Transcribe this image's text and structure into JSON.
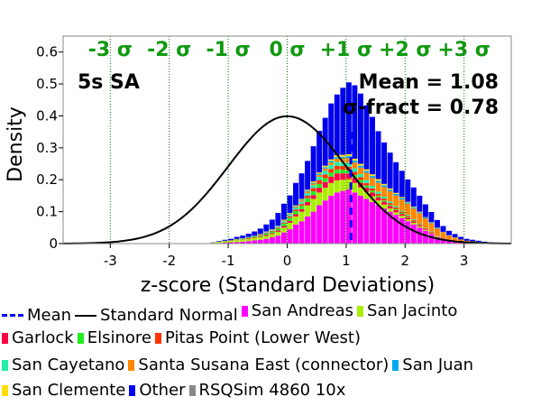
{
  "chart_data": {
    "type": "bar",
    "title": "",
    "panel_label": "5s SA",
    "stats": [
      "Mean = 1.08",
      "σ-fract = 0.78"
    ],
    "xlabel": "z-score (Standard Deviations)",
    "ylabel": "Density",
    "xlim": [
      -3.8,
      3.8
    ],
    "ylim": [
      0,
      0.65
    ],
    "x_ticks": [
      -3,
      -2,
      -1,
      0,
      1,
      2,
      3
    ],
    "x_tick_labels": [
      "-3",
      "-2",
      "-1",
      "0",
      "1",
      "2",
      "3"
    ],
    "y_ticks": [
      0,
      0.1,
      0.2,
      0.3,
      0.4,
      0.5,
      0.6
    ],
    "y_tick_labels": [
      "0",
      "0.1",
      "0.2",
      "0.3",
      "0.4",
      "0.5",
      "0.6"
    ],
    "sigma_lines": [
      -3,
      -2,
      -1,
      0,
      1,
      2,
      3
    ],
    "sigma_labels": [
      "-3 σ",
      "-2 σ",
      "-1 σ",
      "0 σ",
      "+1 σ",
      "+2 σ",
      "+3 σ"
    ],
    "mean": 1.08,
    "bin_width": 0.1,
    "bin_starts": [
      -1.3,
      -1.2,
      -1.1,
      -1.0,
      -0.9,
      -0.8,
      -0.7,
      -0.6,
      -0.5,
      -0.4,
      -0.3,
      -0.2,
      -0.1,
      0.0,
      0.1,
      0.2,
      0.3,
      0.4,
      0.5,
      0.6,
      0.7,
      0.8,
      0.9,
      1.0,
      1.1,
      1.2,
      1.3,
      1.4,
      1.5,
      1.6,
      1.7,
      1.8,
      1.9,
      2.0,
      2.1,
      2.2,
      2.3,
      2.4,
      2.5,
      2.6,
      2.7,
      2.8,
      2.9,
      3.0,
      3.1,
      3.2,
      3.3,
      3.4,
      3.5
    ],
    "series": [
      {
        "name": "San Andreas",
        "color": "#ff00ff",
        "values": [
          0.001,
          0.002,
          0.003,
          0.004,
          0.005,
          0.006,
          0.008,
          0.01,
          0.012,
          0.015,
          0.02,
          0.025,
          0.035,
          0.045,
          0.06,
          0.07,
          0.085,
          0.1,
          0.12,
          0.135,
          0.15,
          0.16,
          0.165,
          0.17,
          0.16,
          0.15,
          0.14,
          0.13,
          0.12,
          0.11,
          0.1,
          0.09,
          0.08,
          0.07,
          0.06,
          0.05,
          0.04,
          0.03,
          0.02,
          0.015,
          0.01,
          0.008,
          0.006,
          0.004,
          0.003,
          0.002,
          0.001,
          0.001,
          0.0
        ]
      },
      {
        "name": "San Jacinto",
        "color": "#aaee00",
        "values": [
          0.002,
          0.003,
          0.004,
          0.005,
          0.006,
          0.006,
          0.007,
          0.008,
          0.008,
          0.009,
          0.01,
          0.012,
          0.015,
          0.02,
          0.025,
          0.03,
          0.035,
          0.04,
          0.04,
          0.04,
          0.04,
          0.038,
          0.035,
          0.032,
          0.03,
          0.026,
          0.022,
          0.018,
          0.015,
          0.012,
          0.01,
          0.008,
          0.007,
          0.006,
          0.005,
          0.004,
          0.003,
          0.002,
          0.002,
          0.001,
          0.001,
          0.001,
          0.0,
          0.0,
          0.0,
          0.0,
          0.0,
          0.0,
          0.0
        ]
      },
      {
        "name": "Garlock",
        "color": "#ff0044",
        "values": [
          0.0,
          0.0,
          0.001,
          0.001,
          0.001,
          0.001,
          0.002,
          0.002,
          0.002,
          0.003,
          0.003,
          0.004,
          0.005,
          0.006,
          0.007,
          0.008,
          0.01,
          0.012,
          0.015,
          0.018,
          0.02,
          0.022,
          0.02,
          0.018,
          0.016,
          0.015,
          0.013,
          0.012,
          0.01,
          0.009,
          0.008,
          0.007,
          0.006,
          0.005,
          0.004,
          0.003,
          0.002,
          0.002,
          0.001,
          0.001,
          0.001,
          0.0,
          0.0,
          0.0,
          0.0,
          0.0,
          0.0,
          0.0,
          0.0
        ]
      },
      {
        "name": "Elsinore",
        "color": "#22ee22",
        "values": [
          0.0,
          0.001,
          0.001,
          0.001,
          0.002,
          0.002,
          0.002,
          0.003,
          0.003,
          0.004,
          0.005,
          0.006,
          0.008,
          0.01,
          0.01,
          0.01,
          0.012,
          0.012,
          0.012,
          0.012,
          0.012,
          0.012,
          0.011,
          0.01,
          0.009,
          0.008,
          0.007,
          0.006,
          0.005,
          0.004,
          0.004,
          0.003,
          0.003,
          0.002,
          0.002,
          0.001,
          0.001,
          0.001,
          0.0,
          0.0,
          0.0,
          0.0,
          0.0,
          0.0,
          0.0,
          0.0,
          0.0,
          0.0,
          0.0
        ]
      },
      {
        "name": "Pitas Point (Lower West)",
        "color": "#ff3300",
        "values": [
          0.0,
          0.0,
          0.0,
          0.0,
          0.001,
          0.001,
          0.001,
          0.001,
          0.002,
          0.002,
          0.002,
          0.003,
          0.003,
          0.004,
          0.005,
          0.006,
          0.008,
          0.01,
          0.012,
          0.012,
          0.012,
          0.012,
          0.012,
          0.011,
          0.01,
          0.009,
          0.008,
          0.007,
          0.006,
          0.006,
          0.005,
          0.005,
          0.004,
          0.004,
          0.003,
          0.003,
          0.002,
          0.002,
          0.001,
          0.001,
          0.0,
          0.0,
          0.0,
          0.0,
          0.0,
          0.0,
          0.0,
          0.0,
          0.0
        ]
      },
      {
        "name": "San Cayetano",
        "color": "#22eeaa",
        "values": [
          0.0,
          0.0,
          0.0,
          0.0,
          0.0,
          0.001,
          0.001,
          0.001,
          0.001,
          0.002,
          0.002,
          0.003,
          0.004,
          0.005,
          0.006,
          0.007,
          0.008,
          0.009,
          0.01,
          0.011,
          0.012,
          0.012,
          0.012,
          0.012,
          0.011,
          0.01,
          0.009,
          0.008,
          0.007,
          0.006,
          0.005,
          0.004,
          0.003,
          0.003,
          0.002,
          0.002,
          0.001,
          0.001,
          0.001,
          0.0,
          0.0,
          0.0,
          0.0,
          0.0,
          0.0,
          0.0,
          0.0,
          0.0,
          0.0
        ]
      },
      {
        "name": "Santa Susana East (connector)",
        "color": "#ff8800",
        "values": [
          0.0,
          0.0,
          0.0,
          0.0,
          0.0,
          0.0,
          0.0,
          0.0,
          0.001,
          0.001,
          0.001,
          0.001,
          0.002,
          0.002,
          0.003,
          0.004,
          0.005,
          0.005,
          0.006,
          0.007,
          0.008,
          0.01,
          0.012,
          0.015,
          0.018,
          0.02,
          0.023,
          0.025,
          0.028,
          0.03,
          0.032,
          0.034,
          0.035,
          0.035,
          0.034,
          0.032,
          0.03,
          0.026,
          0.022,
          0.018,
          0.014,
          0.01,
          0.007,
          0.005,
          0.004,
          0.003,
          0.002,
          0.001,
          0.001
        ]
      },
      {
        "name": "San Juan",
        "color": "#00aaee",
        "values": [
          0.0,
          0.0,
          0.0,
          0.0,
          0.0,
          0.0,
          0.0,
          0.0,
          0.0,
          0.001,
          0.001,
          0.001,
          0.001,
          0.002,
          0.002,
          0.002,
          0.003,
          0.003,
          0.004,
          0.004,
          0.005,
          0.005,
          0.005,
          0.006,
          0.006,
          0.006,
          0.006,
          0.006,
          0.006,
          0.006,
          0.005,
          0.005,
          0.005,
          0.004,
          0.004,
          0.003,
          0.003,
          0.002,
          0.002,
          0.001,
          0.001,
          0.001,
          0.0,
          0.0,
          0.0,
          0.0,
          0.0,
          0.0,
          0.0
        ]
      },
      {
        "name": "San Clemente",
        "color": "#ffdd00",
        "values": [
          0.0,
          0.0,
          0.0,
          0.0,
          0.0,
          0.0,
          0.0,
          0.0,
          0.001,
          0.001,
          0.001,
          0.001,
          0.002,
          0.002,
          0.002,
          0.003,
          0.003,
          0.004,
          0.004,
          0.005,
          0.005,
          0.006,
          0.006,
          0.006,
          0.006,
          0.006,
          0.005,
          0.005,
          0.005,
          0.004,
          0.004,
          0.003,
          0.003,
          0.002,
          0.002,
          0.002,
          0.001,
          0.001,
          0.001,
          0.0,
          0.0,
          0.0,
          0.0,
          0.0,
          0.0,
          0.0,
          0.0,
          0.0,
          0.0
        ]
      },
      {
        "name": "Other",
        "color": "#0000ee",
        "values": [
          0.001,
          0.002,
          0.003,
          0.004,
          0.006,
          0.008,
          0.01,
          0.013,
          0.017,
          0.022,
          0.03,
          0.04,
          0.05,
          0.055,
          0.07,
          0.08,
          0.09,
          0.11,
          0.13,
          0.15,
          0.175,
          0.19,
          0.21,
          0.225,
          0.23,
          0.22,
          0.2,
          0.18,
          0.15,
          0.13,
          0.112,
          0.096,
          0.082,
          0.07,
          0.06,
          0.05,
          0.04,
          0.032,
          0.024,
          0.018,
          0.013,
          0.01,
          0.008,
          0.006,
          0.005,
          0.004,
          0.003,
          0.002,
          0.002
        ]
      },
      {
        "name": "RSQSim 4860 10x",
        "color": "#888888",
        "values": [
          0.0,
          0.0,
          0.0,
          0.0,
          0.0,
          0.0,
          0.0,
          0.0,
          0.0,
          0.0,
          0.0,
          0.0,
          0.0,
          0.0,
          0.0,
          0.0,
          0.0,
          0.0,
          0.0,
          0.0,
          0.0,
          0.0,
          0.0,
          0.0,
          0.0,
          0.0,
          0.0,
          0.0,
          0.0,
          0.0,
          0.0,
          0.0,
          0.0,
          0.0,
          0.0,
          0.0,
          0.0,
          0.0,
          0.0,
          0.0,
          0.0,
          0.0,
          0.0,
          0.0,
          0.0,
          0.0,
          0.0,
          0.0,
          0.0
        ]
      }
    ],
    "legend": {
      "rows": [
        [
          {
            "kind": "dash",
            "label": "Mean",
            "color": "#0000ff"
          },
          {
            "kind": "line",
            "label": "Standard Normal",
            "color": "#000000"
          },
          {
            "kind": "box",
            "label": "San Andreas",
            "color": "#ff00ff"
          },
          {
            "kind": "box",
            "label": "San Jacinto",
            "color": "#aaee00"
          }
        ],
        [
          {
            "kind": "box",
            "label": "Garlock",
            "color": "#ff0044"
          },
          {
            "kind": "box",
            "label": "Elsinore",
            "color": "#22ee22"
          },
          {
            "kind": "box",
            "label": "Pitas Point (Lower West)",
            "color": "#ff3300"
          }
        ],
        [
          {
            "kind": "box",
            "label": "San Cayetano",
            "color": "#22eeaa"
          },
          {
            "kind": "box",
            "label": "Santa Susana East (connector)",
            "color": "#ff8800"
          },
          {
            "kind": "box",
            "label": "San Juan",
            "color": "#00aaee"
          }
        ],
        [
          {
            "kind": "box",
            "label": "San Clemente",
            "color": "#ffdd00"
          },
          {
            "kind": "box",
            "label": "Other",
            "color": "#0000ee"
          },
          {
            "kind": "box",
            "label": "RSQSim 4860 10x",
            "color": "#888888"
          }
        ]
      ]
    }
  }
}
